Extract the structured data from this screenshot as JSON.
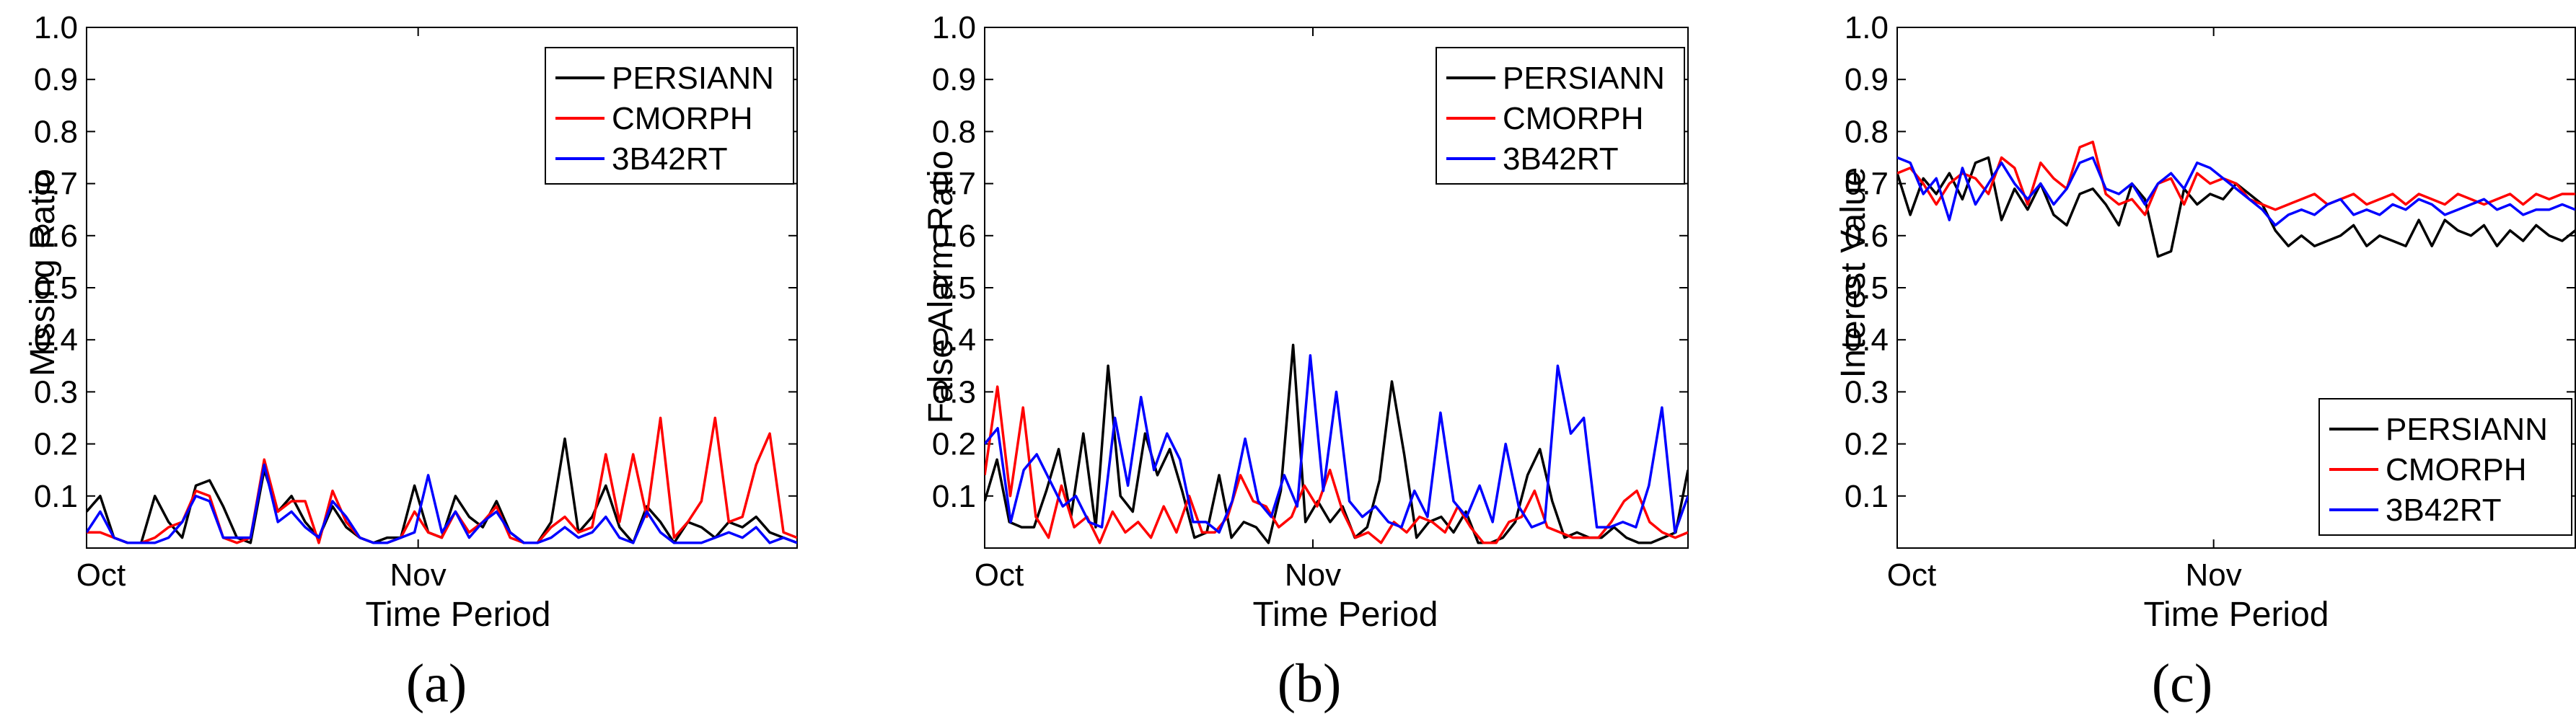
{
  "figure": {
    "panel_labels": [
      "(a)",
      "(b)",
      "(c)"
    ]
  },
  "chart_data": [
    {
      "type": "line",
      "panel": "(a)",
      "title": "",
      "xlabel": "Time Period",
      "ylabel": "Missing Ratio",
      "ylim": [
        0,
        1.0
      ],
      "xlim": [
        0,
        60
      ],
      "yticks": [
        0.1,
        0.2,
        0.3,
        0.4,
        0.5,
        0.6,
        0.7,
        0.8,
        0.9,
        1.0
      ],
      "ytick_labels": [
        "0.1",
        "0.2",
        "0.3",
        "0.4",
        "0.5",
        "0.6",
        "0.7",
        "0.8",
        "0.9",
        "1.0"
      ],
      "xticks": [
        0,
        28
      ],
      "xtick_labels": [
        "Oct",
        "Nov"
      ],
      "legend_position": "top-right",
      "colors": {
        "PERSIANN": "#000000",
        "CMORPH": "#ff0000",
        "3B42RT": "#0000ff"
      },
      "series": [
        {
          "name": "PERSIANN",
          "values": [
            0.07,
            0.1,
            0.02,
            0.01,
            0.01,
            0.1,
            0.05,
            0.02,
            0.12,
            0.13,
            0.08,
            0.02,
            0.01,
            0.15,
            0.07,
            0.1,
            0.05,
            0.02,
            0.08,
            0.04,
            0.02,
            0.01,
            0.02,
            0.02,
            0.12,
            0.03,
            0.02,
            0.1,
            0.06,
            0.04,
            0.09,
            0.03,
            0.01,
            0.01,
            0.05,
            0.21,
            0.03,
            0.06,
            0.12,
            0.04,
            0.01,
            0.08,
            0.05,
            0.01,
            0.05,
            0.04,
            0.02,
            0.05,
            0.04,
            0.06,
            0.03,
            0.02,
            0.01
          ]
        },
        {
          "name": "CMORPH",
          "values": [
            0.03,
            0.03,
            0.02,
            0.01,
            0.01,
            0.02,
            0.04,
            0.05,
            0.11,
            0.1,
            0.02,
            0.01,
            0.02,
            0.17,
            0.07,
            0.09,
            0.09,
            0.01,
            0.11,
            0.05,
            0.02,
            0.01,
            0.01,
            0.02,
            0.07,
            0.03,
            0.02,
            0.07,
            0.03,
            0.05,
            0.08,
            0.02,
            0.01,
            0.01,
            0.04,
            0.06,
            0.03,
            0.04,
            0.18,
            0.05,
            0.18,
            0.06,
            0.25,
            0.02,
            0.05,
            0.09,
            0.25,
            0.05,
            0.06,
            0.16,
            0.22,
            0.03,
            0.02
          ]
        },
        {
          "name": "3B42RT",
          "values": [
            0.03,
            0.07,
            0.02,
            0.01,
            0.01,
            0.01,
            0.02,
            0.05,
            0.1,
            0.09,
            0.02,
            0.02,
            0.02,
            0.16,
            0.05,
            0.07,
            0.04,
            0.02,
            0.09,
            0.06,
            0.02,
            0.01,
            0.01,
            0.02,
            0.03,
            0.14,
            0.03,
            0.07,
            0.02,
            0.05,
            0.07,
            0.03,
            0.01,
            0.01,
            0.02,
            0.04,
            0.02,
            0.03,
            0.06,
            0.02,
            0.01,
            0.07,
            0.03,
            0.01,
            0.01,
            0.01,
            0.02,
            0.03,
            0.02,
            0.04,
            0.01,
            0.02,
            0.01
          ]
        }
      ]
    },
    {
      "type": "line",
      "panel": "(b)",
      "title": "",
      "xlabel": "Time Period",
      "ylabel": "False Alarm Ratio",
      "ylim": [
        0,
        1.0
      ],
      "xlim": [
        0,
        60
      ],
      "yticks": [
        0.1,
        0.2,
        0.3,
        0.4,
        0.5,
        0.6,
        0.7,
        0.8,
        0.9,
        1.0
      ],
      "ytick_labels": [
        "0.1",
        "0.2",
        "0.3",
        "0.4",
        "0.5",
        "0.6",
        "0.7",
        "0.8",
        "0.9",
        "1.0"
      ],
      "xticks": [
        0,
        28
      ],
      "xtick_labels": [
        "Oct",
        "Nov"
      ],
      "legend_position": "top-right",
      "colors": {
        "PERSIANN": "#000000",
        "CMORPH": "#ff0000",
        "3B42RT": "#0000ff"
      },
      "series": [
        {
          "name": "PERSIANN",
          "values": [
            0.09,
            0.17,
            0.05,
            0.04,
            0.04,
            0.11,
            0.19,
            0.06,
            0.22,
            0.04,
            0.35,
            0.1,
            0.07,
            0.22,
            0.14,
            0.19,
            0.11,
            0.02,
            0.03,
            0.14,
            0.02,
            0.05,
            0.04,
            0.01,
            0.11,
            0.39,
            0.05,
            0.09,
            0.05,
            0.08,
            0.02,
            0.04,
            0.13,
            0.32,
            0.18,
            0.02,
            0.05,
            0.06,
            0.03,
            0.07,
            0.01,
            0.01,
            0.02,
            0.05,
            0.14,
            0.19,
            0.09,
            0.02,
            0.03,
            0.02,
            0.02,
            0.04,
            0.02,
            0.01,
            0.01,
            0.02,
            0.03,
            0.15
          ]
        },
        {
          "name": "CMORPH",
          "values": [
            0.14,
            0.31,
            0.1,
            0.27,
            0.06,
            0.02,
            0.12,
            0.04,
            0.06,
            0.01,
            0.07,
            0.03,
            0.05,
            0.02,
            0.08,
            0.03,
            0.1,
            0.03,
            0.03,
            0.06,
            0.14,
            0.09,
            0.08,
            0.04,
            0.06,
            0.12,
            0.08,
            0.15,
            0.07,
            0.02,
            0.03,
            0.01,
            0.05,
            0.03,
            0.06,
            0.05,
            0.03,
            0.08,
            0.04,
            0.01,
            0.01,
            0.05,
            0.06,
            0.11,
            0.04,
            0.03,
            0.02,
            0.02,
            0.02,
            0.05,
            0.09,
            0.11,
            0.05,
            0.03,
            0.02,
            0.03
          ]
        },
        {
          "name": "3B42RT",
          "values": [
            0.2,
            0.23,
            0.05,
            0.15,
            0.18,
            0.13,
            0.08,
            0.1,
            0.05,
            0.04,
            0.25,
            0.12,
            0.29,
            0.15,
            0.22,
            0.17,
            0.05,
            0.05,
            0.03,
            0.09,
            0.21,
            0.09,
            0.06,
            0.14,
            0.08,
            0.37,
            0.11,
            0.3,
            0.09,
            0.06,
            0.08,
            0.05,
            0.04,
            0.11,
            0.06,
            0.26,
            0.09,
            0.06,
            0.12,
            0.05,
            0.2,
            0.08,
            0.04,
            0.05,
            0.35,
            0.22,
            0.25,
            0.04,
            0.04,
            0.05,
            0.04,
            0.12,
            0.27,
            0.03,
            0.1
          ]
        }
      ]
    },
    {
      "type": "line",
      "panel": "(c)",
      "title": "",
      "xlabel": "Time Period",
      "ylabel": "Interest Value",
      "ylim": [
        0,
        1.0
      ],
      "xlim": [
        0,
        60
      ],
      "yticks": [
        0.1,
        0.2,
        0.3,
        0.4,
        0.5,
        0.6,
        0.7,
        0.8,
        0.9,
        1.0
      ],
      "ytick_labels": [
        "0.1",
        "0.2",
        "0.3",
        "0.4",
        "0.5",
        "0.6",
        "0.7",
        "0.8",
        "0.9",
        "1.0"
      ],
      "xticks": [
        0,
        28
      ],
      "xtick_labels": [
        "Oct",
        "Nov"
      ],
      "legend_position": "bottom-right",
      "colors": {
        "PERSIANN": "#000000",
        "CMORPH": "#ff0000",
        "3B42RT": "#0000ff"
      },
      "series": [
        {
          "name": "PERSIANN",
          "values": [
            0.72,
            0.64,
            0.71,
            0.68,
            0.72,
            0.67,
            0.74,
            0.75,
            0.63,
            0.69,
            0.65,
            0.7,
            0.64,
            0.62,
            0.68,
            0.69,
            0.66,
            0.62,
            0.7,
            0.67,
            0.56,
            0.57,
            0.69,
            0.66,
            0.68,
            0.67,
            0.7,
            0.68,
            0.66,
            0.61,
            0.58,
            0.6,
            0.58,
            0.59,
            0.6,
            0.62,
            0.58,
            0.6,
            0.59,
            0.58,
            0.63,
            0.58,
            0.63,
            0.61,
            0.6,
            0.62,
            0.58,
            0.61,
            0.59,
            0.62,
            0.6,
            0.59,
            0.61
          ]
        },
        {
          "name": "CMORPH",
          "values": [
            0.72,
            0.73,
            0.7,
            0.66,
            0.7,
            0.72,
            0.71,
            0.68,
            0.75,
            0.73,
            0.66,
            0.74,
            0.71,
            0.69,
            0.77,
            0.78,
            0.68,
            0.66,
            0.67,
            0.64,
            0.7,
            0.71,
            0.66,
            0.72,
            0.7,
            0.71,
            0.7,
            0.67,
            0.66,
            0.65,
            0.66,
            0.67,
            0.68,
            0.66,
            0.67,
            0.68,
            0.66,
            0.67,
            0.68,
            0.66,
            0.68,
            0.67,
            0.66,
            0.68,
            0.67,
            0.66,
            0.67,
            0.68,
            0.66,
            0.68,
            0.67,
            0.68,
            0.68
          ]
        },
        {
          "name": "3B42RT",
          "values": [
            0.75,
            0.74,
            0.68,
            0.71,
            0.63,
            0.73,
            0.66,
            0.7,
            0.74,
            0.7,
            0.67,
            0.7,
            0.66,
            0.69,
            0.74,
            0.75,
            0.69,
            0.68,
            0.7,
            0.66,
            0.7,
            0.72,
            0.69,
            0.74,
            0.73,
            0.71,
            0.69,
            0.67,
            0.65,
            0.62,
            0.64,
            0.65,
            0.64,
            0.66,
            0.67,
            0.64,
            0.65,
            0.64,
            0.66,
            0.65,
            0.67,
            0.66,
            0.64,
            0.65,
            0.66,
            0.67,
            0.65,
            0.66,
            0.64,
            0.65,
            0.65,
            0.66,
            0.65
          ]
        }
      ]
    }
  ]
}
